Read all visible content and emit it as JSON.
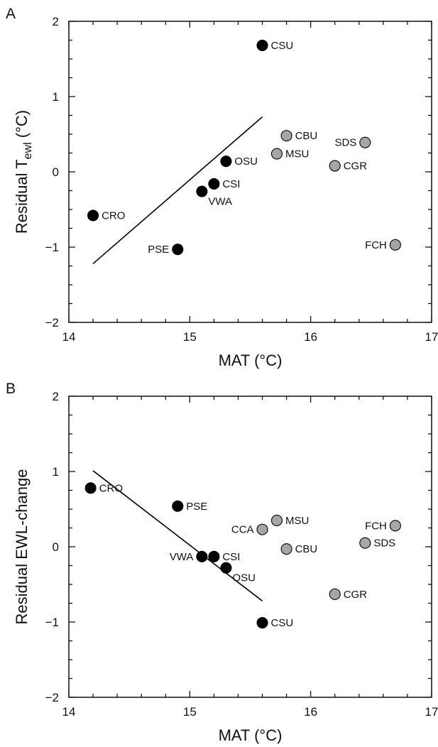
{
  "chart_data": [
    {
      "type": "scatter",
      "panel": "A",
      "xlabel": "MAT (°C)",
      "ylabel": {
        "main": "Residual T",
        "sub": "ewl",
        "suffix": " (°C)"
      },
      "xlim": [
        14,
        17
      ],
      "ylim": [
        -2,
        2
      ],
      "xticks": [
        14,
        15,
        16,
        17
      ],
      "yticks": [
        2,
        1,
        0,
        -1,
        -2
      ],
      "grid": false,
      "colors": {
        "black": "#000000",
        "gray": "#a6a6a6"
      },
      "points": [
        {
          "label": "CSU",
          "x": 15.6,
          "y": 1.68,
          "color": "black",
          "side": "right"
        },
        {
          "label": "OSU",
          "x": 15.3,
          "y": 0.14,
          "color": "black",
          "side": "right"
        },
        {
          "label": "CSI",
          "x": 15.2,
          "y": -0.16,
          "color": "black",
          "side": "right"
        },
        {
          "label": "VWA",
          "x": 15.1,
          "y": -0.26,
          "color": "black",
          "side": "below-right"
        },
        {
          "label": "CRO",
          "x": 14.2,
          "y": -0.58,
          "color": "black",
          "side": "right"
        },
        {
          "label": "PSE",
          "x": 14.9,
          "y": -1.03,
          "color": "black",
          "side": "left"
        },
        {
          "label": "CBU",
          "x": 15.8,
          "y": 0.48,
          "color": "gray",
          "side": "right"
        },
        {
          "label": "MSU",
          "x": 15.72,
          "y": 0.24,
          "color": "gray",
          "side": "right"
        },
        {
          "label": "SDS",
          "x": 16.45,
          "y": 0.39,
          "color": "gray",
          "side": "left"
        },
        {
          "label": "CGR",
          "x": 16.2,
          "y": 0.08,
          "color": "gray",
          "side": "right"
        },
        {
          "label": "FCH",
          "x": 16.7,
          "y": -0.97,
          "color": "gray",
          "side": "left"
        }
      ],
      "fit_line": {
        "x": [
          14.2,
          15.6
        ],
        "y": [
          -1.22,
          0.73
        ]
      }
    },
    {
      "type": "scatter",
      "panel": "B",
      "xlabel": "MAT (°C)",
      "ylabel": {
        "main": "Residual EWL-change",
        "sub": "",
        "suffix": ""
      },
      "xlim": [
        14,
        17
      ],
      "ylim": [
        -2,
        2
      ],
      "xticks": [
        14,
        15,
        16,
        17
      ],
      "yticks": [
        2,
        1,
        0,
        -1,
        -2
      ],
      "grid": false,
      "colors": {
        "black": "#000000",
        "gray": "#a6a6a6"
      },
      "points": [
        {
          "label": "CRO",
          "x": 14.18,
          "y": 0.78,
          "color": "black",
          "side": "right"
        },
        {
          "label": "PSE",
          "x": 14.9,
          "y": 0.54,
          "color": "black",
          "side": "right"
        },
        {
          "label": "VWA",
          "x": 15.1,
          "y": -0.13,
          "color": "black",
          "side": "left"
        },
        {
          "label": "CSI",
          "x": 15.2,
          "y": -0.13,
          "color": "black",
          "side": "right"
        },
        {
          "label": "OSU",
          "x": 15.3,
          "y": -0.28,
          "color": "black",
          "side": "below-right"
        },
        {
          "label": "CSU",
          "x": 15.6,
          "y": -1.01,
          "color": "black",
          "side": "right"
        },
        {
          "label": "CCA",
          "x": 15.6,
          "y": 0.23,
          "color": "gray",
          "side": "left"
        },
        {
          "label": "MSU",
          "x": 15.72,
          "y": 0.35,
          "color": "gray",
          "side": "right"
        },
        {
          "label": "CBU",
          "x": 15.8,
          "y": -0.03,
          "color": "gray",
          "side": "right"
        },
        {
          "label": "FCH",
          "x": 16.7,
          "y": 0.28,
          "color": "gray",
          "side": "left"
        },
        {
          "label": "SDS",
          "x": 16.45,
          "y": 0.05,
          "color": "gray",
          "side": "right"
        },
        {
          "label": "CGR",
          "x": 16.2,
          "y": -0.63,
          "color": "gray",
          "side": "right"
        }
      ],
      "fit_line": {
        "x": [
          14.2,
          15.6
        ],
        "y": [
          1.01,
          -0.72
        ]
      }
    }
  ]
}
